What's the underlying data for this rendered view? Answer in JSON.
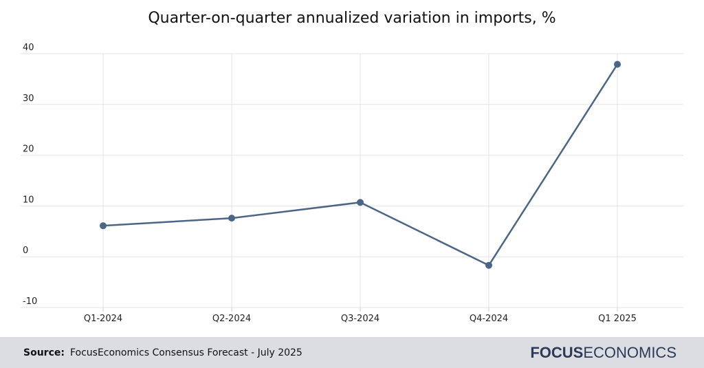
{
  "chart_data": {
    "type": "line",
    "title": "Quarter-on-quarter annualized variation in imports, %",
    "categories": [
      "Q1-2024",
      "Q2-2024",
      "Q3-2024",
      "Q4-2024",
      "Q1 2025"
    ],
    "series": [
      {
        "name": "Imports",
        "values": [
          6.1,
          7.6,
          10.7,
          -1.7,
          37.9
        ]
      }
    ],
    "ylim": [
      -10,
      40
    ],
    "yticks": [
      "40",
      "30",
      "20",
      "10",
      "0",
      "-10"
    ],
    "xlabel": "",
    "ylabel": "",
    "grid": true,
    "line_color": "#4a6585"
  },
  "footer": {
    "source_label": "Source:",
    "source_text": "FocusEconomics Consensus Forecast - July 2025",
    "logo_bold": "FOCUS",
    "logo_light": "ECONOMICS"
  }
}
